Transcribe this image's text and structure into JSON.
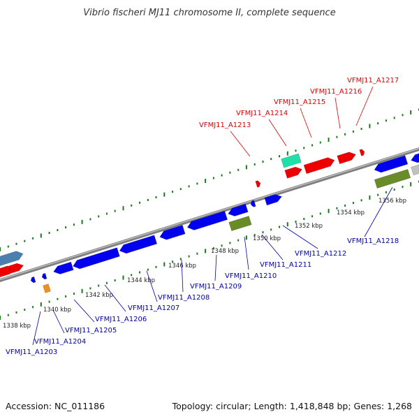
{
  "title": "Vibrio fischeri MJ11 chromosome II, complete sequence",
  "footer": {
    "accession": "Accession: NC_011186",
    "summary": "Topology: circular; Length: 1,418,848 bp; Genes: 1,268"
  },
  "colors": {
    "backbone": "#808080",
    "forward_strand": "#0000ee",
    "reverse_strand": "#ee0000",
    "steelblue_feature": "#4a80b0",
    "teal_feature": "#20e0a8",
    "olive_feature": "#6a8c28",
    "orange_feature": "#f0901c",
    "gray_feature": "#c0c0c0",
    "tick_green": "#1a7a1a",
    "label_red": "#dd0000",
    "label_blue": "#0000aa"
  },
  "scale_ticks": [
    "1338 kbp",
    "1340 kbp",
    "1342 kbp",
    "1344 kbp",
    "1346 kbp",
    "1348 kbp",
    "1350 kbp",
    "1352 kbp",
    "1354 kbp",
    "1356 kbp"
  ],
  "labels_upper": [
    "VFMJ11_A1213",
    "VFMJ11_A1214",
    "VFMJ11_A1215",
    "VFMJ11_A1216",
    "VFMJ11_A1217"
  ],
  "labels_lower": [
    "VFMJ11_A1203",
    "VFMJ11_A1204",
    "VFMJ11_A1205",
    "VFMJ11_A1206",
    "VFMJ11_A1207",
    "VFMJ11_A1208",
    "VFMJ11_A1209",
    "VFMJ11_A1210",
    "VFMJ11_A1211",
    "VFMJ11_A1212",
    "VFMJ11_A1218"
  ]
}
